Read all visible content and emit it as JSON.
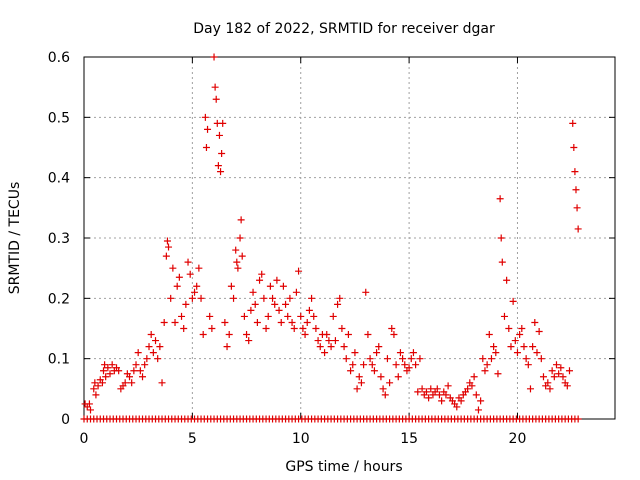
{
  "chart_data": {
    "type": "scatter",
    "title": "Day 182 of 2022, SRMTID for receiver dgar",
    "xlabel": "GPS time / hours",
    "ylabel": "SRMTID / TECUs",
    "xlim": [
      0,
      24.5
    ],
    "ylim": [
      0,
      0.6
    ],
    "xticks": [
      0,
      5,
      10,
      15,
      20
    ],
    "xtick_labels": [
      "0",
      "5",
      "10",
      "15",
      "20"
    ],
    "yticks": [
      0,
      0.1,
      0.2,
      0.3,
      0.4,
      0.5,
      0.6
    ],
    "ytick_labels": [
      "0",
      "0.1",
      "0.2",
      "0.3",
      "0.4",
      "0.5",
      "0.6"
    ],
    "grid": true,
    "marker": "plus",
    "color": "#e00000",
    "series": [
      {
        "name": "SRMTID",
        "points": [
          [
            0.05,
            0.025
          ],
          [
            0.15,
            0.02
          ],
          [
            0.25,
            0.025
          ],
          [
            0.3,
            0.015
          ],
          [
            0.45,
            0.05
          ],
          [
            0.5,
            0.06
          ],
          [
            0.55,
            0.04
          ],
          [
            0.65,
            0.055
          ],
          [
            0.75,
            0.065
          ],
          [
            0.85,
            0.06
          ],
          [
            0.9,
            0.08
          ],
          [
            0.95,
            0.09
          ],
          [
            1.0,
            0.07
          ],
          [
            1.1,
            0.085
          ],
          [
            1.2,
            0.075
          ],
          [
            1.3,
            0.09
          ],
          [
            1.4,
            0.08
          ],
          [
            1.5,
            0.085
          ],
          [
            1.6,
            0.08
          ],
          [
            1.7,
            0.05
          ],
          [
            1.8,
            0.055
          ],
          [
            1.9,
            0.06
          ],
          [
            2.0,
            0.075
          ],
          [
            2.1,
            0.07
          ],
          [
            2.2,
            0.06
          ],
          [
            2.3,
            0.08
          ],
          [
            2.4,
            0.09
          ],
          [
            2.5,
            0.11
          ],
          [
            2.6,
            0.08
          ],
          [
            2.7,
            0.07
          ],
          [
            2.8,
            0.09
          ],
          [
            2.9,
            0.1
          ],
          [
            3.0,
            0.12
          ],
          [
            3.1,
            0.14
          ],
          [
            3.2,
            0.11
          ],
          [
            3.3,
            0.13
          ],
          [
            3.4,
            0.1
          ],
          [
            3.5,
            0.12
          ],
          [
            3.6,
            0.06
          ],
          [
            3.7,
            0.16
          ],
          [
            3.8,
            0.27
          ],
          [
            3.85,
            0.295
          ],
          [
            3.9,
            0.285
          ],
          [
            4.0,
            0.2
          ],
          [
            4.1,
            0.25
          ],
          [
            4.2,
            0.16
          ],
          [
            4.3,
            0.22
          ],
          [
            4.4,
            0.235
          ],
          [
            4.5,
            0.17
          ],
          [
            4.6,
            0.15
          ],
          [
            4.7,
            0.19
          ],
          [
            4.8,
            0.26
          ],
          [
            4.9,
            0.24
          ],
          [
            5.0,
            0.2
          ],
          [
            5.1,
            0.21
          ],
          [
            5.2,
            0.22
          ],
          [
            5.3,
            0.25
          ],
          [
            5.4,
            0.2
          ],
          [
            5.5,
            0.14
          ],
          [
            5.6,
            0.5
          ],
          [
            5.65,
            0.45
          ],
          [
            5.7,
            0.48
          ],
          [
            5.8,
            0.17
          ],
          [
            5.9,
            0.15
          ],
          [
            6.0,
            0.6
          ],
          [
            6.05,
            0.55
          ],
          [
            6.1,
            0.53
          ],
          [
            6.15,
            0.49
          ],
          [
            6.2,
            0.42
          ],
          [
            6.25,
            0.47
          ],
          [
            6.3,
            0.41
          ],
          [
            6.35,
            0.44
          ],
          [
            6.4,
            0.49
          ],
          [
            6.5,
            0.16
          ],
          [
            6.6,
            0.12
          ],
          [
            6.7,
            0.14
          ],
          [
            6.8,
            0.22
          ],
          [
            6.9,
            0.2
          ],
          [
            7.0,
            0.28
          ],
          [
            7.05,
            0.26
          ],
          [
            7.1,
            0.25
          ],
          [
            7.2,
            0.3
          ],
          [
            7.25,
            0.33
          ],
          [
            7.3,
            0.27
          ],
          [
            7.4,
            0.17
          ],
          [
            7.5,
            0.14
          ],
          [
            7.6,
            0.13
          ],
          [
            7.7,
            0.18
          ],
          [
            7.8,
            0.21
          ],
          [
            7.9,
            0.19
          ],
          [
            8.0,
            0.16
          ],
          [
            8.1,
            0.23
          ],
          [
            8.2,
            0.24
          ],
          [
            8.3,
            0.2
          ],
          [
            8.4,
            0.15
          ],
          [
            8.5,
            0.17
          ],
          [
            8.6,
            0.22
          ],
          [
            8.7,
            0.2
          ],
          [
            8.8,
            0.19
          ],
          [
            8.9,
            0.23
          ],
          [
            9.0,
            0.18
          ],
          [
            9.1,
            0.16
          ],
          [
            9.2,
            0.22
          ],
          [
            9.3,
            0.19
          ],
          [
            9.4,
            0.17
          ],
          [
            9.5,
            0.2
          ],
          [
            9.6,
            0.16
          ],
          [
            9.7,
            0.15
          ],
          [
            9.8,
            0.21
          ],
          [
            9.9,
            0.245
          ],
          [
            10.0,
            0.17
          ],
          [
            10.1,
            0.15
          ],
          [
            10.2,
            0.14
          ],
          [
            10.3,
            0.16
          ],
          [
            10.4,
            0.18
          ],
          [
            10.5,
            0.2
          ],
          [
            10.6,
            0.17
          ],
          [
            10.7,
            0.15
          ],
          [
            10.8,
            0.13
          ],
          [
            10.9,
            0.12
          ],
          [
            11.0,
            0.14
          ],
          [
            11.1,
            0.11
          ],
          [
            11.2,
            0.14
          ],
          [
            11.3,
            0.13
          ],
          [
            11.4,
            0.12
          ],
          [
            11.5,
            0.17
          ],
          [
            11.6,
            0.13
          ],
          [
            11.7,
            0.19
          ],
          [
            11.8,
            0.2
          ],
          [
            11.9,
            0.15
          ],
          [
            12.0,
            0.12
          ],
          [
            12.1,
            0.1
          ],
          [
            12.2,
            0.14
          ],
          [
            12.3,
            0.08
          ],
          [
            12.4,
            0.09
          ],
          [
            12.5,
            0.11
          ],
          [
            12.6,
            0.05
          ],
          [
            12.7,
            0.07
          ],
          [
            12.8,
            0.06
          ],
          [
            12.9,
            0.09
          ],
          [
            13.0,
            0.21
          ],
          [
            13.1,
            0.14
          ],
          [
            13.2,
            0.1
          ],
          [
            13.3,
            0.09
          ],
          [
            13.4,
            0.08
          ],
          [
            13.5,
            0.11
          ],
          [
            13.6,
            0.12
          ],
          [
            13.7,
            0.07
          ],
          [
            13.8,
            0.05
          ],
          [
            13.9,
            0.04
          ],
          [
            14.0,
            0.1
          ],
          [
            14.1,
            0.06
          ],
          [
            14.2,
            0.15
          ],
          [
            14.3,
            0.14
          ],
          [
            14.4,
            0.09
          ],
          [
            14.5,
            0.07
          ],
          [
            14.6,
            0.11
          ],
          [
            14.7,
            0.1
          ],
          [
            14.8,
            0.09
          ],
          [
            14.9,
            0.08
          ],
          [
            15.0,
            0.085
          ],
          [
            15.1,
            0.1
          ],
          [
            15.2,
            0.11
          ],
          [
            15.3,
            0.09
          ],
          [
            15.4,
            0.045
          ],
          [
            15.5,
            0.1
          ],
          [
            15.6,
            0.05
          ],
          [
            15.7,
            0.04
          ],
          [
            15.8,
            0.045
          ],
          [
            15.9,
            0.035
          ],
          [
            16.0,
            0.05
          ],
          [
            16.1,
            0.04
          ],
          [
            16.2,
            0.045
          ],
          [
            16.3,
            0.05
          ],
          [
            16.4,
            0.04
          ],
          [
            16.5,
            0.03
          ],
          [
            16.6,
            0.045
          ],
          [
            16.7,
            0.04
          ],
          [
            16.8,
            0.055
          ],
          [
            16.9,
            0.035
          ],
          [
            17.0,
            0.03
          ],
          [
            17.1,
            0.025
          ],
          [
            17.2,
            0.02
          ],
          [
            17.3,
            0.035
          ],
          [
            17.4,
            0.03
          ],
          [
            17.5,
            0.04
          ],
          [
            17.6,
            0.045
          ],
          [
            17.7,
            0.05
          ],
          [
            17.8,
            0.06
          ],
          [
            17.9,
            0.055
          ],
          [
            18.0,
            0.07
          ],
          [
            18.1,
            0.04
          ],
          [
            18.2,
            0.015
          ],
          [
            18.3,
            0.03
          ],
          [
            18.4,
            0.1
          ],
          [
            18.5,
            0.08
          ],
          [
            18.6,
            0.09
          ],
          [
            18.7,
            0.14
          ],
          [
            18.8,
            0.1
          ],
          [
            18.9,
            0.12
          ],
          [
            19.0,
            0.11
          ],
          [
            19.1,
            0.075
          ],
          [
            19.2,
            0.365
          ],
          [
            19.25,
            0.3
          ],
          [
            19.3,
            0.26
          ],
          [
            19.4,
            0.17
          ],
          [
            19.5,
            0.23
          ],
          [
            19.6,
            0.15
          ],
          [
            19.7,
            0.12
          ],
          [
            19.8,
            0.195
          ],
          [
            19.9,
            0.13
          ],
          [
            20.0,
            0.11
          ],
          [
            20.1,
            0.14
          ],
          [
            20.2,
            0.15
          ],
          [
            20.3,
            0.12
          ],
          [
            20.4,
            0.1
          ],
          [
            20.5,
            0.09
          ],
          [
            20.6,
            0.05
          ],
          [
            20.7,
            0.12
          ],
          [
            20.8,
            0.16
          ],
          [
            20.9,
            0.11
          ],
          [
            21.0,
            0.145
          ],
          [
            21.1,
            0.1
          ],
          [
            21.2,
            0.07
          ],
          [
            21.3,
            0.055
          ],
          [
            21.4,
            0.06
          ],
          [
            21.5,
            0.05
          ],
          [
            21.6,
            0.08
          ],
          [
            21.7,
            0.07
          ],
          [
            21.8,
            0.09
          ],
          [
            21.9,
            0.075
          ],
          [
            22.0,
            0.085
          ],
          [
            22.1,
            0.07
          ],
          [
            22.2,
            0.06
          ],
          [
            22.3,
            0.055
          ],
          [
            22.4,
            0.08
          ],
          [
            22.55,
            0.49
          ],
          [
            22.6,
            0.45
          ],
          [
            22.65,
            0.41
          ],
          [
            22.7,
            0.38
          ],
          [
            22.75,
            0.35
          ],
          [
            22.8,
            0.315
          ]
        ],
        "zero_run": {
          "x_start": 0.0,
          "x_end": 22.8,
          "x_step": 0.15,
          "y": 0
        }
      }
    ]
  }
}
